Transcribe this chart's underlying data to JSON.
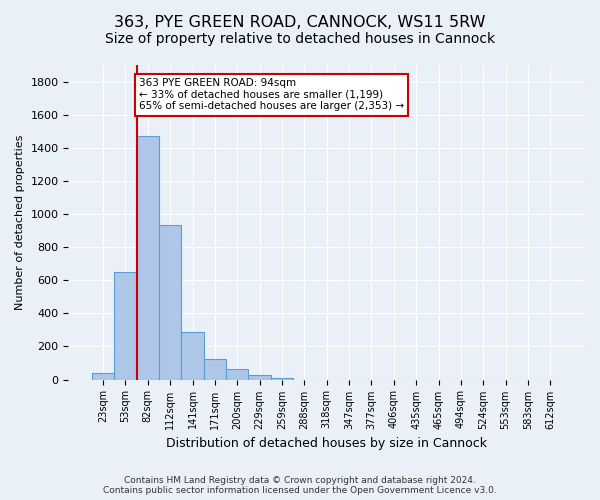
{
  "title1": "363, PYE GREEN ROAD, CANNOCK, WS11 5RW",
  "title2": "Size of property relative to detached houses in Cannock",
  "xlabel": "Distribution of detached houses by size in Cannock",
  "ylabel": "Number of detached properties",
  "footnote": "Contains HM Land Registry data © Crown copyright and database right 2024.\nContains public sector information licensed under the Open Government Licence v3.0.",
  "bin_labels": [
    "23sqm",
    "53sqm",
    "82sqm",
    "112sqm",
    "141sqm",
    "171sqm",
    "200sqm",
    "229sqm",
    "259sqm",
    "288sqm",
    "318sqm",
    "347sqm",
    "377sqm",
    "406sqm",
    "435sqm",
    "465sqm",
    "494sqm",
    "524sqm",
    "553sqm",
    "583sqm",
    "612sqm"
  ],
  "bar_values": [
    40,
    650,
    1470,
    935,
    290,
    125,
    65,
    25,
    12,
    0,
    0,
    0,
    0,
    0,
    0,
    0,
    0,
    0,
    0,
    0,
    0
  ],
  "bar_color": "#aec6e8",
  "bar_edge_color": "#5a9fd4",
  "vline_x_index": 2,
  "vline_color": "#cc0000",
  "annotation_text": "363 PYE GREEN ROAD: 94sqm\n← 33% of detached houses are smaller (1,199)\n65% of semi-detached houses are larger (2,353) →",
  "annotation_box_color": "#cc0000",
  "ylim": [
    0,
    1900
  ],
  "yticks": [
    0,
    200,
    400,
    600,
    800,
    1000,
    1200,
    1400,
    1600,
    1800
  ],
  "bg_color": "#eaf0f8",
  "plot_bg_color": "#eaf0f8",
  "grid_color": "#ffffff",
  "title_fontsize": 11.5,
  "subtitle_fontsize": 10
}
